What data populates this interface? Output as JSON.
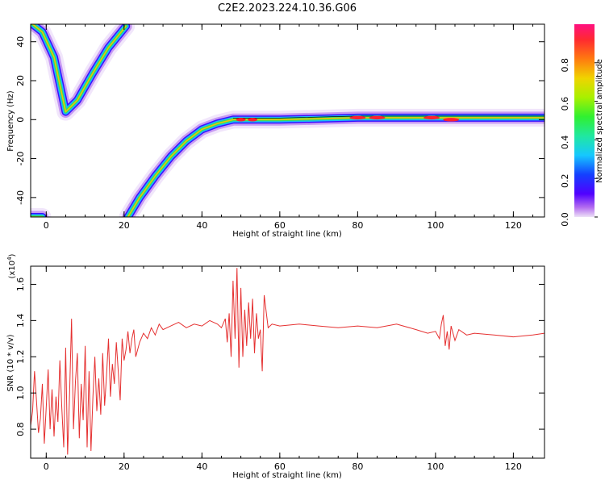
{
  "title": "C2E2.2023.224.10.36.G06",
  "chart_data": [
    {
      "type": "heatmap",
      "xlabel": "Height of straight line (km)",
      "ylabel": "Frequency (Hz)",
      "xlim": [
        -4,
        128
      ],
      "ylim": [
        -50,
        49
      ],
      "xticks": [
        0,
        20,
        40,
        60,
        80,
        100,
        120
      ],
      "yticks": [
        -40,
        -20,
        0,
        20,
        40
      ],
      "colorbar": {
        "label": "Normalized spectral amplitude",
        "range": [
          0,
          1
        ],
        "ticks": [
          0.0,
          0.2,
          0.4,
          0.6,
          0.8
        ]
      },
      "series": [
        {
          "x": [
            -3.5,
            -1,
            2,
            5,
            8,
            12,
            16,
            20.5
          ],
          "y": [
            49,
            45,
            32,
            4,
            10,
            24,
            37,
            48
          ]
        },
        {
          "x": [
            -4,
            -1
          ],
          "y": [
            -50,
            -50
          ]
        },
        {
          "x": [
            21,
            24,
            28,
            32,
            36,
            40,
            44,
            48,
            52,
            60,
            80,
            100,
            128
          ],
          "y": [
            -50,
            -40,
            -29,
            -19,
            -11,
            -5,
            -2,
            0,
            0,
            0,
            1,
            1,
            1
          ]
        }
      ]
    },
    {
      "type": "line",
      "xlabel": "Height of straight line (km)",
      "ylabel": "SNR (10 * v/v)",
      "yscale_label": "(x10",
      "yscale_exp": "4",
      "yscale_close": ")",
      "xlim": [
        -4,
        128
      ],
      "ylim": [
        0.64,
        1.7
      ],
      "xticks": [
        0,
        20,
        40,
        60,
        80,
        100,
        120
      ],
      "yticks": [
        0.8,
        1.0,
        1.2,
        1.4,
        1.6
      ],
      "color": "#e53030",
      "series": [
        {
          "x": [
            -4,
            -3.5,
            -3,
            -2.5,
            -2,
            -1.5,
            -1,
            -0.5,
            0,
            0.5,
            1,
            1.5,
            2,
            2.5,
            3,
            3.5,
            4,
            4.5,
            5,
            5.5,
            6,
            6.5,
            7,
            7.5,
            8,
            8.5,
            9,
            9.5,
            10,
            10.5,
            11,
            11.5,
            12,
            12.5,
            13,
            13.5,
            14,
            14.5,
            15,
            15.5,
            16,
            16.5,
            17,
            17.5,
            18,
            18.5,
            19,
            19.5,
            20,
            20.5,
            21,
            21.5,
            22,
            22.5,
            23,
            24,
            25,
            26,
            27,
            28,
            29,
            30,
            32,
            34,
            36,
            38,
            40,
            42,
            44,
            45,
            46,
            46.5,
            47,
            47.5,
            48,
            48.5,
            49,
            49.5,
            50,
            50.5,
            51,
            51.5,
            52,
            52.5,
            53,
            53.5,
            54,
            54.5,
            55,
            55.5,
            56,
            57,
            58,
            60,
            65,
            70,
            75,
            80,
            85,
            90,
            95,
            98,
            100,
            101,
            101.5,
            102,
            102.5,
            103,
            103.5,
            104,
            104.5,
            105,
            106,
            108,
            110,
            115,
            120,
            125,
            128
          ],
          "y": [
            0.82,
            0.9,
            1.12,
            0.96,
            0.78,
            0.86,
            1.05,
            0.72,
            0.92,
            1.13,
            0.8,
            1.02,
            0.76,
            0.98,
            0.84,
            1.18,
            0.92,
            0.7,
            1.25,
            0.66,
            1.0,
            1.41,
            0.8,
            1.06,
            1.22,
            0.75,
            1.05,
            0.85,
            1.26,
            0.7,
            1.12,
            0.68,
            0.98,
            1.2,
            0.9,
            1.08,
            0.88,
            1.22,
            0.93,
            1.1,
            1.3,
            0.98,
            1.16,
            1.05,
            1.28,
            1.12,
            0.96,
            1.3,
            1.18,
            1.24,
            1.34,
            1.22,
            1.3,
            1.35,
            1.2,
            1.28,
            1.33,
            1.3,
            1.36,
            1.32,
            1.38,
            1.35,
            1.37,
            1.39,
            1.36,
            1.38,
            1.37,
            1.4,
            1.38,
            1.36,
            1.41,
            1.28,
            1.44,
            1.2,
            1.62,
            1.3,
            1.69,
            1.14,
            1.58,
            1.2,
            1.46,
            1.26,
            1.5,
            1.3,
            1.52,
            1.22,
            1.44,
            1.3,
            1.35,
            1.12,
            1.54,
            1.36,
            1.38,
            1.37,
            1.38,
            1.37,
            1.36,
            1.37,
            1.36,
            1.38,
            1.35,
            1.33,
            1.34,
            1.3,
            1.38,
            1.43,
            1.26,
            1.34,
            1.24,
            1.37,
            1.33,
            1.29,
            1.35,
            1.32,
            1.33,
            1.32,
            1.31,
            1.32,
            1.33
          ]
        }
      ]
    }
  ]
}
